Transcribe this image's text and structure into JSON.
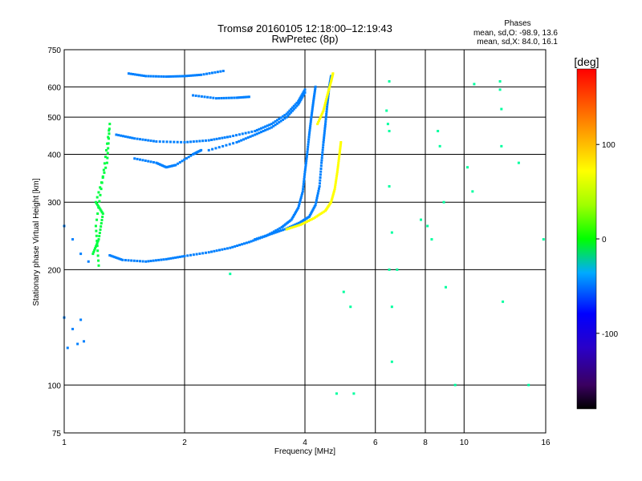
{
  "chart_data": {
    "type": "scatter",
    "title": "Tromsø 20160105 12:18:00–12:19:43",
    "subtitle": "RwPretec (8p)",
    "xlabel": "Frequency [MHz]",
    "ylabel": "Stationary phase Virtual Height [km]",
    "x_scale": "log",
    "y_scale": "log",
    "xlim": [
      1,
      16
    ],
    "ylim": [
      75,
      750
    ],
    "xticks": [
      1,
      2,
      4,
      6,
      8,
      10,
      16
    ],
    "xtick_labels": [
      "1",
      "2",
      "4",
      "6",
      "8",
      "10",
      "16"
    ],
    "yticks": [
      75,
      100,
      200,
      300,
      400,
      500,
      600,
      750
    ],
    "ytick_labels": [
      "75",
      "100",
      "200",
      "300",
      "400",
      "500",
      "600",
      "750"
    ],
    "grid": true,
    "phases": {
      "header": "Phases",
      "o_stats": "mean, sd,O: -98.9, 13.6",
      "x_stats": "mean, sd,X: 84.0, 16.1"
    },
    "colorbar": {
      "label": "[deg]",
      "vmin": -180,
      "vmax": 180,
      "ticks": [
        100,
        0,
        -100
      ],
      "tick_labels": [
        "100",
        "0",
        "-100"
      ]
    },
    "series": [
      {
        "phase": -100,
        "trace": "ordinary-lower",
        "points": [
          [
            1.3,
            218
          ],
          [
            1.4,
            212
          ],
          [
            1.6,
            210
          ],
          [
            1.8,
            213
          ],
          [
            2.0,
            217
          ],
          [
            2.3,
            222
          ],
          [
            2.6,
            228
          ],
          [
            2.9,
            236
          ],
          [
            3.2,
            245
          ],
          [
            3.5,
            258
          ],
          [
            3.7,
            270
          ],
          [
            3.85,
            290
          ],
          [
            3.95,
            320
          ],
          [
            4.0,
            360
          ],
          [
            4.05,
            400
          ],
          [
            4.1,
            450
          ],
          [
            4.15,
            500
          ],
          [
            4.2,
            550
          ],
          [
            4.25,
            600
          ]
        ]
      },
      {
        "phase": -100,
        "trace": "ordinary-upper",
        "points": [
          [
            3.0,
            240
          ],
          [
            3.3,
            248
          ],
          [
            3.6,
            256
          ],
          [
            3.9,
            266
          ],
          [
            4.1,
            275
          ],
          [
            4.25,
            295
          ],
          [
            4.35,
            330
          ],
          [
            4.4,
            380
          ],
          [
            4.45,
            430
          ],
          [
            4.5,
            480
          ],
          [
            4.55,
            540
          ],
          [
            4.6,
            600
          ],
          [
            4.65,
            640
          ]
        ]
      },
      {
        "phase": 100,
        "trace": "extraordinary-lower",
        "points": [
          [
            3.6,
            255
          ],
          [
            3.9,
            262
          ],
          [
            4.2,
            272
          ],
          [
            4.5,
            285
          ],
          [
            4.65,
            300
          ],
          [
            4.75,
            325
          ],
          [
            4.82,
            360
          ],
          [
            4.88,
            400
          ],
          [
            4.92,
            430
          ]
        ]
      },
      {
        "phase": 100,
        "trace": "extraordinary-upper",
        "points": [
          [
            4.3,
            480
          ],
          [
            4.45,
            520
          ],
          [
            4.55,
            570
          ],
          [
            4.65,
            620
          ],
          [
            4.7,
            650
          ]
        ]
      },
      {
        "phase": -100,
        "trace": "f2-spread",
        "points": [
          [
            1.35,
            450
          ],
          [
            1.5,
            440
          ],
          [
            1.7,
            432
          ],
          [
            2.0,
            430
          ],
          [
            2.3,
            435
          ],
          [
            2.6,
            445
          ],
          [
            3.0,
            460
          ],
          [
            3.3,
            480
          ],
          [
            3.6,
            510
          ],
          [
            3.85,
            550
          ],
          [
            4.0,
            590
          ]
        ]
      },
      {
        "phase": -100,
        "trace": "f2-spread-2",
        "points": [
          [
            2.3,
            410
          ],
          [
            2.7,
            430
          ],
          [
            3.0,
            450
          ],
          [
            3.3,
            470
          ],
          [
            3.6,
            500
          ],
          [
            3.85,
            540
          ],
          [
            4.0,
            580
          ]
        ]
      },
      {
        "phase": -100,
        "trace": "top-arc",
        "points": [
          [
            1.45,
            650
          ],
          [
            1.6,
            640
          ],
          [
            1.8,
            638
          ],
          [
            2.0,
            640
          ],
          [
            2.2,
            645
          ],
          [
            2.5,
            660
          ]
        ]
      },
      {
        "phase": -100,
        "trace": "upper-mid-arc",
        "points": [
          [
            2.1,
            570
          ],
          [
            2.4,
            560
          ],
          [
            2.7,
            562
          ],
          [
            2.9,
            565
          ]
        ]
      },
      {
        "phase": -100,
        "trace": "low-band",
        "points": [
          [
            1.0,
            260
          ],
          [
            1.05,
            240
          ],
          [
            1.1,
            220
          ],
          [
            1.15,
            210
          ],
          [
            1.0,
            150
          ],
          [
            1.05,
            140
          ],
          [
            1.1,
            148
          ],
          [
            1.02,
            125
          ],
          [
            1.08,
            128
          ],
          [
            1.12,
            130
          ]
        ]
      },
      {
        "phase": 0,
        "trace": "green-band",
        "points": [
          [
            1.18,
            220
          ],
          [
            1.22,
            240
          ],
          [
            1.25,
            280
          ],
          [
            1.2,
            300
          ],
          [
            1.28,
            380
          ],
          [
            1.3,
            480
          ],
          [
            1.25,
            350
          ],
          [
            1.2,
            260
          ],
          [
            1.22,
            205
          ]
        ]
      },
      {
        "phase": -100,
        "trace": "f1-mid",
        "points": [
          [
            1.5,
            390
          ],
          [
            1.7,
            380
          ],
          [
            1.8,
            370
          ],
          [
            1.9,
            375
          ],
          [
            2.1,
            400
          ],
          [
            2.2,
            410
          ]
        ]
      },
      {
        "phase": -30,
        "trace": "scattered",
        "points": [
          [
            6.5,
            620
          ],
          [
            6.4,
            520
          ],
          [
            6.45,
            480
          ],
          [
            6.5,
            460
          ],
          [
            6.5,
            330
          ],
          [
            6.6,
            250
          ],
          [
            6.5,
            200
          ],
          [
            6.6,
            160
          ],
          [
            6.6,
            115
          ],
          [
            6.8,
            200
          ],
          [
            7.8,
            270
          ],
          [
            8.1,
            260
          ],
          [
            8.3,
            240
          ],
          [
            8.6,
            460
          ],
          [
            8.7,
            420
          ],
          [
            8.9,
            300
          ],
          [
            9.0,
            180
          ],
          [
            9.5,
            100
          ],
          [
            10.2,
            370
          ],
          [
            10.5,
            320
          ],
          [
            10.6,
            610
          ],
          [
            12.3,
            620
          ],
          [
            12.3,
            590
          ],
          [
            12.4,
            525
          ],
          [
            12.4,
            420
          ],
          [
            12.5,
            165
          ],
          [
            13.7,
            380
          ],
          [
            14.5,
            100
          ],
          [
            15.8,
            240
          ],
          [
            4.8,
            95
          ],
          [
            5.3,
            95
          ],
          [
            5.0,
            175
          ],
          [
            5.2,
            160
          ],
          [
            2.6,
            195
          ]
        ]
      }
    ]
  }
}
